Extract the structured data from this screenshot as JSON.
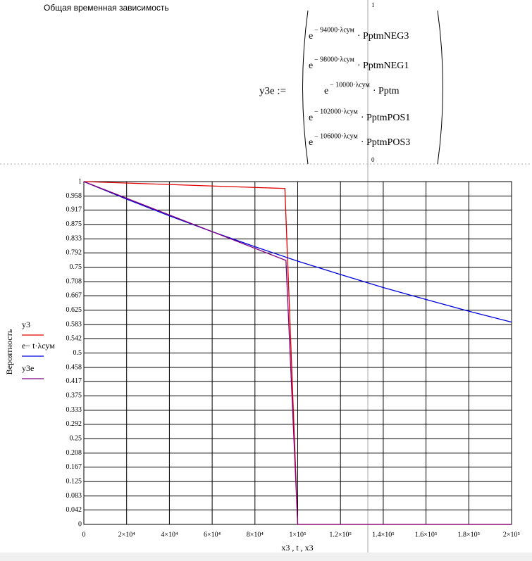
{
  "header": {
    "title": "Общая временная зависимость"
  },
  "formula": {
    "lhs": "y3e :=",
    "index_top": "1",
    "index_bottom": "0",
    "rows": [
      {
        "base": "e",
        "exponent": "− 94000·λсум",
        "factor": "· PptmNEG3"
      },
      {
        "base": "e",
        "exponent": "− 98000·λсум",
        "factor": "· PptmNEG1"
      },
      {
        "base": "e",
        "exponent": "− 10000·λсум",
        "factor": "· Pptm"
      },
      {
        "base": "e",
        "exponent": "− 102000·λсум",
        "factor": "· PptmPOS1"
      },
      {
        "base": "e",
        "exponent": "− 106000·λсум",
        "factor": "· PptmPOS3"
      }
    ]
  },
  "chart_data": {
    "type": "line",
    "x_label": "x3 , t , x3",
    "y_label": "Вероятность",
    "xlim": [
      0,
      200000
    ],
    "xticks": [
      0,
      {
        "value": 20000,
        "label": "2×10⁴"
      },
      {
        "value": 40000,
        "label": "4×10⁴"
      },
      {
        "value": 60000,
        "label": "6×10⁴"
      },
      {
        "value": 80000,
        "label": "8×10⁴"
      },
      {
        "value": 100000,
        "label": "1×10⁵"
      },
      {
        "value": 120000,
        "label": "1.2×10⁵"
      },
      {
        "value": 140000,
        "label": "1.4×10⁵"
      },
      {
        "value": 160000,
        "label": "1.6×10⁵"
      },
      {
        "value": 180000,
        "label": "1.8×10⁵"
      },
      {
        "value": 200000,
        "label": "2×10⁵"
      }
    ],
    "ylim": [
      0,
      1
    ],
    "yticks": [
      0,
      0.042,
      0.083,
      0.125,
      0.167,
      0.208,
      0.25,
      0.292,
      0.333,
      0.375,
      0.417,
      0.458,
      0.5,
      0.542,
      0.583,
      0.625,
      0.667,
      0.708,
      0.75,
      0.792,
      0.833,
      0.875,
      0.917,
      0.958,
      1
    ],
    "grid": true,
    "series": [
      {
        "name": "y3",
        "color": "#e00000",
        "x": [
          0,
          94000,
          100000,
          200000
        ],
        "values": [
          1,
          0.98,
          0,
          0
        ]
      },
      {
        "name": "e− t·λсум",
        "color": "#0000e0",
        "x": [
          0,
          20000,
          40000,
          60000,
          80000,
          100000,
          120000,
          140000,
          160000,
          180000,
          200000
        ],
        "values": [
          1,
          0.949,
          0.9,
          0.854,
          0.81,
          0.768,
          0.729,
          0.691,
          0.656,
          0.622,
          0.59
        ]
      },
      {
        "name": "y3e",
        "color": "#800080",
        "x": [
          0,
          94500,
          100000,
          200000
        ],
        "values": [
          1,
          0.77,
          0,
          0
        ]
      }
    ]
  }
}
